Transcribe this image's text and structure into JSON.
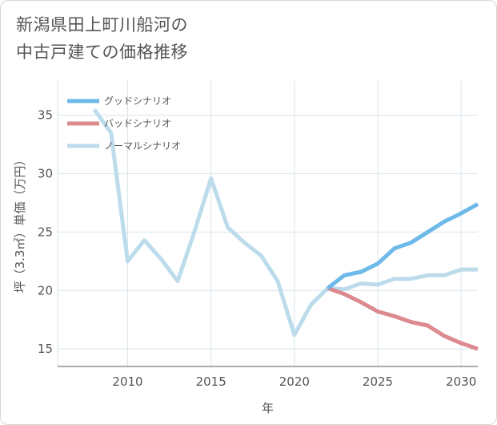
{
  "title": {
    "line1": "新潟県田上町川船河の",
    "line2": "中古戸建ての価格推移"
  },
  "chart_data": {
    "type": "line",
    "xlabel": "年",
    "ylabel": "坪（3.3㎡）単価（万円）",
    "xlim": [
      2005.8,
      2031
    ],
    "ylim": [
      13.5,
      38
    ],
    "x_ticks": [
      2010,
      2015,
      2020,
      2025,
      2030
    ],
    "y_ticks": [
      15,
      20,
      25,
      30,
      35
    ],
    "grid": true,
    "legend_position": "top-left",
    "series": [
      {
        "name": "グッドシナリオ",
        "color": "#6cb9ea",
        "x": [
          2022,
          2023,
          2024,
          2025,
          2026,
          2027,
          2028,
          2029,
          2030,
          2031
        ],
        "values": [
          20.2,
          21.3,
          21.6,
          22.3,
          23.6,
          24.1,
          25.0,
          25.9,
          26.6,
          27.4
        ]
      },
      {
        "name": "バッドシナリオ",
        "color": "#dc8a90",
        "x": [
          2022,
          2023,
          2024,
          2025,
          2026,
          2027,
          2028,
          2029,
          2030,
          2031
        ],
        "values": [
          20.2,
          19.7,
          19.0,
          18.2,
          17.8,
          17.3,
          17.0,
          16.1,
          15.5,
          15.0
        ]
      },
      {
        "name": "ノーマルシナリオ",
        "color": "#bcdcec",
        "x": [
          2008,
          2009,
          2010,
          2011,
          2012,
          2013,
          2014,
          2015,
          2016,
          2017,
          2018,
          2019,
          2020,
          2021,
          2022,
          2023,
          2024,
          2025,
          2026,
          2027,
          2028,
          2029,
          2030,
          2031
        ],
        "values": [
          35.5,
          33.5,
          22.5,
          24.3,
          22.7,
          20.8,
          25.0,
          29.6,
          25.4,
          24.1,
          23.0,
          20.8,
          16.2,
          18.8,
          20.2,
          20.1,
          20.6,
          20.5,
          21.0,
          21.0,
          21.3,
          21.3,
          21.8,
          21.8
        ]
      }
    ]
  }
}
